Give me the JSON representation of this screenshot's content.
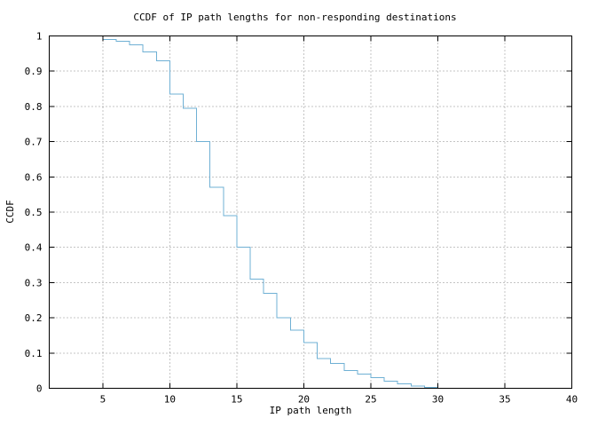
{
  "chart_data": {
    "type": "line",
    "style": "steps",
    "title": "CCDF of IP path lengths for non-responding destinations",
    "xlabel": "IP path length",
    "ylabel": "CCDF",
    "xlim": [
      1,
      40
    ],
    "ylim": [
      0,
      1
    ],
    "xticks": [
      "5",
      "10",
      "15",
      "20",
      "25",
      "30",
      "35",
      "40"
    ],
    "yticks": [
      "0",
      "0.1",
      "0.2",
      "0.3",
      "0.4",
      "0.5",
      "0.6",
      "0.7",
      "0.8",
      "0.9",
      "1"
    ],
    "grid": "dotted",
    "legend": "none",
    "colors": {
      "line": "#6fb0d4",
      "axis": "#000000",
      "grid": "#8a8a8a",
      "background": "#ffffff"
    },
    "series": [
      {
        "name": "CCDF of IP path lengths",
        "x": [
          5,
          6,
          7,
          8,
          9,
          10,
          11,
          12,
          13,
          14,
          15,
          16,
          17,
          18,
          19,
          20,
          21,
          22,
          23,
          24,
          25,
          26,
          27,
          28,
          29,
          30
        ],
        "y": [
          0.99,
          0.985,
          0.975,
          0.955,
          0.93,
          0.835,
          0.795,
          0.7,
          0.57,
          0.49,
          0.4,
          0.31,
          0.27,
          0.2,
          0.165,
          0.13,
          0.085,
          0.07,
          0.05,
          0.04,
          0.03,
          0.02,
          0.012,
          0.006,
          0.002,
          0
        ]
      }
    ]
  }
}
